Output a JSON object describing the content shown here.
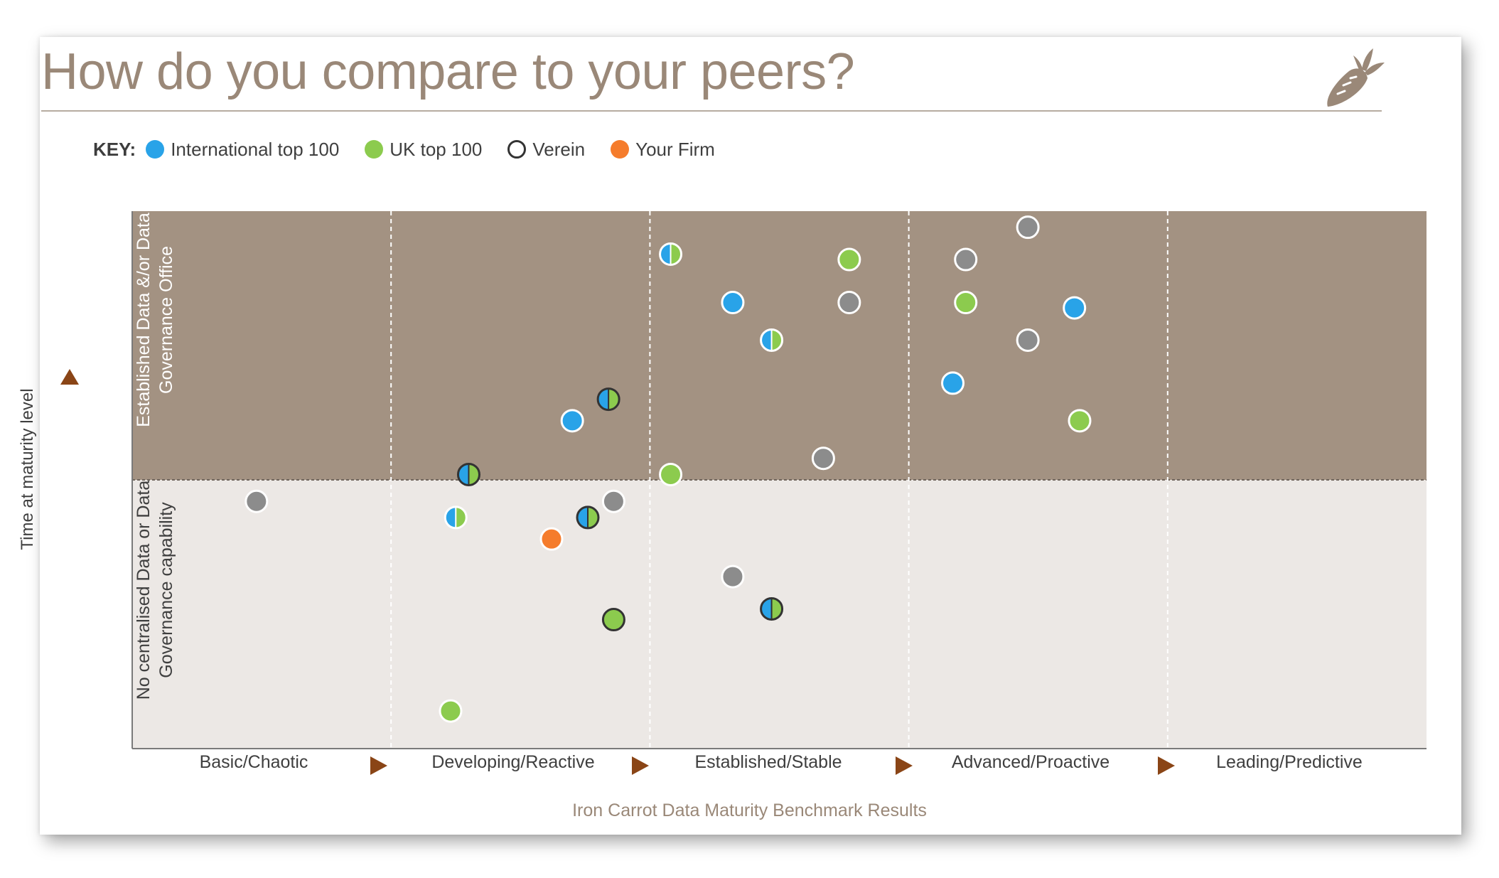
{
  "page": {
    "title": "How do you compare to your peers?",
    "footer": "Iron Carrot Data Maturity Benchmark Results"
  },
  "key": {
    "title": "KEY:",
    "items": [
      {
        "label": "International top 100",
        "color": "#29a3e8",
        "style": "filled"
      },
      {
        "label": "UK top 100",
        "color": "#8ccb4e",
        "style": "filled"
      },
      {
        "label": "Verein",
        "color": "#333333",
        "style": "ring"
      },
      {
        "label": "Your Firm",
        "color": "#f57c2c",
        "style": "filled"
      }
    ]
  },
  "colors": {
    "upper_zone": "#a39282",
    "lower_zone": "#ece8e5",
    "gray_marker": "#8c8c8c",
    "arrow": "#8a4516",
    "title": "#9a8878"
  },
  "chart_data": {
    "type": "scatter",
    "title": "How do you compare to your peers?",
    "xlabel": "",
    "ylabel": "Time at maturity level",
    "x_categories": [
      "Basic/Chaotic",
      "Developing/Reactive",
      "Established/Stable",
      "Advanced/Proactive",
      "Leading/Predictive"
    ],
    "xlim": [
      0,
      5
    ],
    "ylim": [
      0,
      1
    ],
    "zones": [
      {
        "label": "No centralised Data or Data Governance capability",
        "range": [
          0,
          0.5
        ]
      },
      {
        "label": "Established Data &/or Data Governance Office",
        "range": [
          0.5,
          1
        ]
      }
    ],
    "points": [
      {
        "x": 0.48,
        "y": 0.46,
        "type": "gray"
      },
      {
        "x": 1.3,
        "y": 0.51,
        "type": "blue-green-dark"
      },
      {
        "x": 1.25,
        "y": 0.43,
        "type": "blue-green-light"
      },
      {
        "x": 1.23,
        "y": 0.07,
        "type": "green"
      },
      {
        "x": 1.62,
        "y": 0.39,
        "type": "orange"
      },
      {
        "x": 1.7,
        "y": 0.61,
        "type": "blue"
      },
      {
        "x": 1.76,
        "y": 0.43,
        "type": "blue-green-dark"
      },
      {
        "x": 1.84,
        "y": 0.65,
        "type": "blue-green-dark"
      },
      {
        "x": 1.86,
        "y": 0.46,
        "type": "gray"
      },
      {
        "x": 1.86,
        "y": 0.24,
        "type": "green-dark"
      },
      {
        "x": 2.08,
        "y": 0.92,
        "type": "blue-green-light"
      },
      {
        "x": 2.08,
        "y": 0.51,
        "type": "green"
      },
      {
        "x": 2.32,
        "y": 0.83,
        "type": "blue"
      },
      {
        "x": 2.32,
        "y": 0.32,
        "type": "gray"
      },
      {
        "x": 2.47,
        "y": 0.76,
        "type": "blue-green-light"
      },
      {
        "x": 2.47,
        "y": 0.26,
        "type": "blue-green-dark"
      },
      {
        "x": 2.67,
        "y": 0.54,
        "type": "gray"
      },
      {
        "x": 2.77,
        "y": 0.91,
        "type": "green"
      },
      {
        "x": 2.77,
        "y": 0.83,
        "type": "gray"
      },
      {
        "x": 3.17,
        "y": 0.68,
        "type": "blue"
      },
      {
        "x": 3.22,
        "y": 0.91,
        "type": "gray"
      },
      {
        "x": 3.22,
        "y": 0.83,
        "type": "green"
      },
      {
        "x": 3.46,
        "y": 0.97,
        "type": "gray"
      },
      {
        "x": 3.46,
        "y": 0.76,
        "type": "gray"
      },
      {
        "x": 3.64,
        "y": 0.82,
        "type": "blue"
      },
      {
        "x": 3.66,
        "y": 0.61,
        "type": "green"
      }
    ]
  }
}
